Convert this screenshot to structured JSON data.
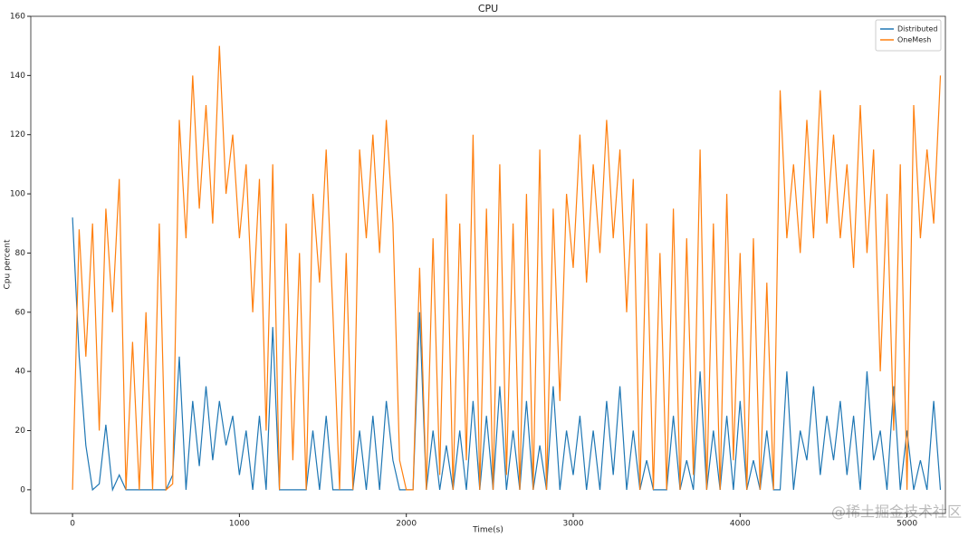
{
  "chart_data": {
    "type": "line",
    "title": "CPU",
    "xlabel": "Time(s)",
    "ylabel": "Cpu percent",
    "x": [
      0,
      40,
      80,
      120,
      160,
      200,
      240,
      280,
      320,
      360,
      400,
      440,
      480,
      520,
      560,
      600,
      640,
      680,
      720,
      760,
      800,
      840,
      880,
      920,
      960,
      1000,
      1040,
      1080,
      1120,
      1160,
      1200,
      1240,
      1280,
      1320,
      1360,
      1400,
      1440,
      1480,
      1520,
      1560,
      1600,
      1640,
      1680,
      1720,
      1760,
      1800,
      1840,
      1880,
      1920,
      1960,
      2000,
      2040,
      2080,
      2120,
      2160,
      2200,
      2240,
      2280,
      2320,
      2360,
      2400,
      2440,
      2480,
      2520,
      2560,
      2600,
      2640,
      2680,
      2720,
      2760,
      2800,
      2840,
      2880,
      2920,
      2960,
      3000,
      3040,
      3080,
      3120,
      3160,
      3200,
      3240,
      3280,
      3320,
      3360,
      3400,
      3440,
      3480,
      3520,
      3560,
      3600,
      3640,
      3680,
      3720,
      3760,
      3800,
      3840,
      3880,
      3920,
      3960,
      4000,
      4040,
      4080,
      4120,
      4160,
      4200,
      4240,
      4280,
      4320,
      4360,
      4400,
      4440,
      4480,
      4520,
      4560,
      4600,
      4640,
      4680,
      4720,
      4760,
      4800,
      4840,
      4880,
      4920,
      4960,
      5000,
      5040,
      5080,
      5120,
      5160,
      5200
    ],
    "series": [
      {
        "name": "Distributed",
        "color": "#1f77b4",
        "values": [
          92,
          45,
          15,
          0,
          2,
          22,
          0,
          5,
          0,
          0,
          0,
          0,
          0,
          0,
          0,
          5,
          45,
          0,
          30,
          8,
          35,
          10,
          30,
          15,
          25,
          5,
          20,
          0,
          25,
          0,
          55,
          0,
          0,
          0,
          0,
          0,
          20,
          0,
          25,
          0,
          0,
          0,
          0,
          20,
          0,
          25,
          0,
          30,
          10,
          0,
          0,
          0,
          60,
          0,
          20,
          0,
          15,
          0,
          20,
          0,
          30,
          0,
          25,
          0,
          35,
          0,
          20,
          0,
          30,
          0,
          15,
          0,
          35,
          0,
          20,
          5,
          25,
          0,
          20,
          0,
          30,
          5,
          35,
          0,
          20,
          0,
          10,
          0,
          0,
          0,
          25,
          0,
          10,
          0,
          40,
          0,
          20,
          0,
          25,
          0,
          30,
          0,
          10,
          0,
          20,
          0,
          0,
          40,
          0,
          20,
          10,
          35,
          5,
          25,
          10,
          30,
          5,
          25,
          0,
          40,
          10,
          20,
          0,
          35,
          0,
          20,
          0,
          10,
          0,
          30,
          0
        ]
      },
      {
        "name": "OneMesh",
        "color": "#ff7f0e",
        "values": [
          0,
          88,
          45,
          90,
          20,
          95,
          60,
          105,
          0,
          50,
          0,
          60,
          0,
          90,
          0,
          2,
          125,
          85,
          140,
          95,
          130,
          90,
          150,
          100,
          120,
          85,
          110,
          60,
          105,
          20,
          110,
          0,
          90,
          10,
          80,
          0,
          100,
          70,
          115,
          60,
          0,
          80,
          0,
          115,
          85,
          120,
          80,
          125,
          90,
          10,
          0,
          0,
          75,
          0,
          85,
          5,
          100,
          0,
          90,
          10,
          120,
          0,
          95,
          0,
          110,
          5,
          90,
          0,
          100,
          0,
          115,
          0,
          95,
          30,
          100,
          75,
          120,
          70,
          110,
          80,
          125,
          85,
          115,
          60,
          105,
          0,
          90,
          0,
          80,
          0,
          95,
          0,
          85,
          5,
          115,
          0,
          90,
          0,
          100,
          10,
          80,
          0,
          85,
          0,
          70,
          0,
          135,
          85,
          110,
          80,
          125,
          85,
          135,
          90,
          120,
          85,
          110,
          75,
          130,
          80,
          115,
          40,
          100,
          20,
          110,
          0,
          130,
          85,
          115,
          90,
          140
        ]
      }
    ],
    "xlim": [
      -250,
      5230
    ],
    "ylim": [
      -8,
      160
    ],
    "xticks": [
      0,
      1000,
      2000,
      3000,
      4000,
      5000
    ],
    "yticks": [
      0,
      20,
      40,
      60,
      80,
      100,
      120,
      140,
      160
    ],
    "legend": "upper right",
    "watermark": "@稀土掘金技术社区"
  }
}
